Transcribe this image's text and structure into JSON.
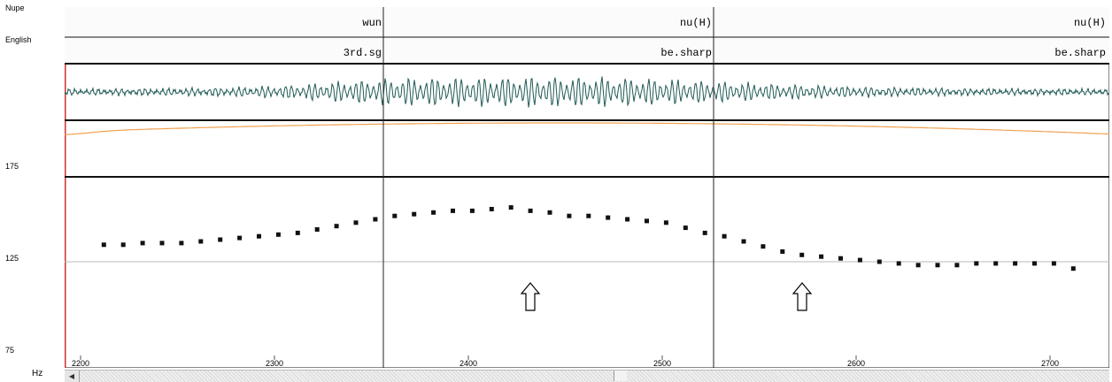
{
  "tiers": {
    "nupe_label": "Nupe",
    "english_label": "English",
    "nupe_cells": [
      "wun",
      "nu(H)",
      "nu(H)"
    ],
    "english_cells": [
      "3rd.sg",
      "be.sharp",
      "be.sharp"
    ]
  },
  "pitch": {
    "y_ticks": [
      "175",
      "125",
      "75"
    ],
    "x_ticks": [
      "2200",
      "2300",
      "2400",
      "2500",
      "2600",
      "2700"
    ],
    "unit": "Hz",
    "x_range": [
      2195,
      2717
    ],
    "y_range": [
      75,
      175
    ],
    "boundaries": [
      2355,
      2526
    ],
    "points_ms": [
      2212,
      2222,
      2232,
      2242,
      2252,
      2262,
      2272,
      2282,
      2292,
      2302,
      2312,
      2322,
      2332,
      2342,
      2352,
      2362,
      2372,
      2382,
      2392,
      2402,
      2412,
      2422,
      2432,
      2442,
      2452,
      2462,
      2472,
      2482,
      2492,
      2502,
      2512,
      2522,
      2532,
      2542,
      2552,
      2562,
      2572,
      2582,
      2592,
      2602,
      2612,
      2622,
      2632,
      2642,
      2652,
      2662,
      2672,
      2682,
      2692,
      2702,
      2712
    ],
    "points_hz": [
      135,
      135,
      136,
      136,
      136,
      137,
      138,
      139,
      140,
      141,
      142,
      144,
      146,
      148,
      150,
      152,
      153,
      154,
      155,
      155,
      156,
      157,
      155,
      154,
      152,
      152,
      151,
      150,
      149,
      148,
      145,
      142,
      140,
      137,
      134,
      131,
      129,
      128,
      127,
      126,
      125,
      124,
      123,
      123,
      123,
      124,
      124,
      124,
      124,
      124,
      121
    ]
  },
  "colors": {
    "waveform": "#1f5a55",
    "intensity": "#f0a050",
    "left_edge": "#d03030",
    "grid": "#bbbbbb",
    "border": "#111111"
  },
  "icons": {
    "up_arrow": "up-arrow-icon"
  }
}
